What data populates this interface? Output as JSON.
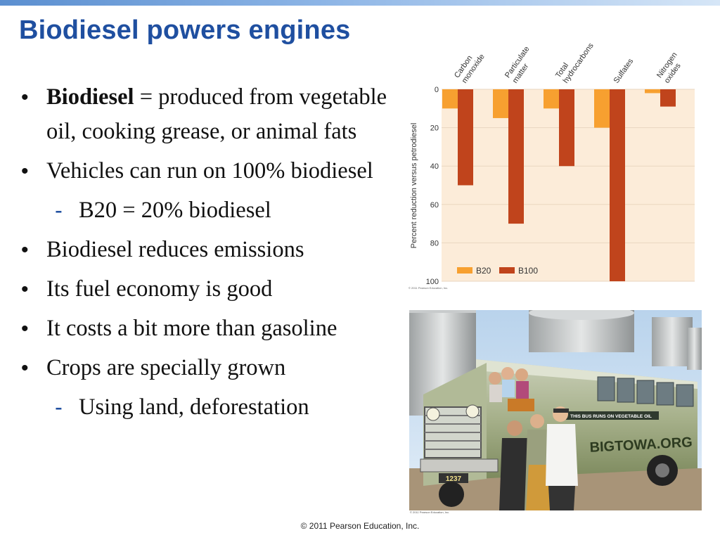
{
  "title": "Biodiesel powers engines",
  "bullets": [
    {
      "term": "Biodiesel",
      "text": " = produced from vegetable oil, cooking grease, or animal fats"
    },
    {
      "text": "Vehicles can run on 100% biodiesel"
    },
    {
      "sub": "B20 = 20% biodiesel"
    },
    {
      "text": "Biodiesel reduces emissions"
    },
    {
      "text": "Its fuel economy is good"
    },
    {
      "text": "It costs a bit more than gasoline"
    },
    {
      "text": "Crops are specially grown"
    },
    {
      "sub": "Using land, deforestation"
    }
  ],
  "bullet_glyph": "•",
  "sub_glyph": "-",
  "chart_data": {
    "type": "bar",
    "categories": [
      [
        "Carbon",
        "monoxide"
      ],
      [
        "Particulate",
        "matter"
      ],
      [
        "Total",
        "hydrocarbons"
      ],
      [
        "Sulfates"
      ],
      [
        "Nitrogen",
        "oxides"
      ]
    ],
    "series": [
      {
        "name": "B20",
        "values": [
          10,
          15,
          10,
          20,
          2
        ],
        "color": "#f7a030"
      },
      {
        "name": "B100",
        "values": [
          50,
          70,
          40,
          100,
          9
        ],
        "color": "#c0441c"
      }
    ],
    "ylabel": "Percent reduction versus petrodiesel",
    "ylim": [
      0,
      100
    ],
    "yticks": [
      0,
      20,
      40,
      60,
      80,
      100
    ],
    "y_inverted": true,
    "legend_position": "bottom-left",
    "background_color": "#fcecd9",
    "credit": "© 2011 Pearson Education, Inc."
  },
  "photo": {
    "bus_sign": "THIS BUS RUNS ON VEGETABLE OIL",
    "bus_side_text": "BIGTOWA.ORG",
    "bus_number": "1237",
    "credit": "© 2011 Pearson Education, Inc."
  },
  "footer": "© 2011 Pearson Education, Inc."
}
